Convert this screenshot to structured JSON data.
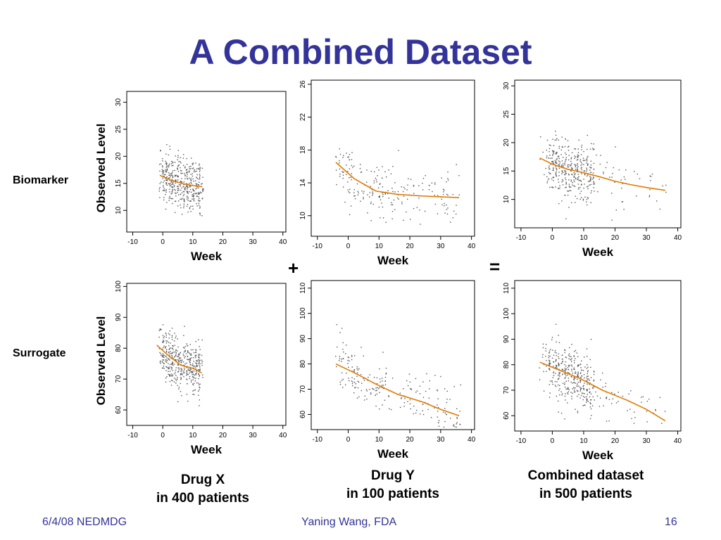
{
  "slide": {
    "title": "A Combined Dataset",
    "row_labels": [
      "Biomarker",
      "Surrogate"
    ],
    "y_axis_label": "Observed Level",
    "plus": "+",
    "equals": "=",
    "captions": [
      [
        "Drug X",
        "in 400 patients"
      ],
      [
        "Drug Y",
        "in 100 patients"
      ],
      [
        "Combined dataset",
        "in 500 patients"
      ]
    ],
    "footer": {
      "left": "6/4/08 NEDMDG",
      "center": "Yaning Wang, FDA",
      "right": "16"
    }
  },
  "chart_data": [
    {
      "type": "scatter",
      "panel": "Biomarker - Drug X",
      "xlabel": "Week",
      "ylabel": "Observed Level",
      "xlim": [
        -12,
        41
      ],
      "ylim": [
        6,
        32
      ],
      "xticks": [
        -10,
        0,
        10,
        20,
        30,
        40
      ],
      "yticks": [
        10,
        15,
        20,
        25,
        30
      ],
      "x_range_observed": [
        -1,
        13
      ],
      "fit": {
        "x": [
          -1,
          3,
          7,
          11,
          13
        ],
        "y": [
          16.5,
          15.5,
          14.9,
          14.5,
          14.4
        ]
      },
      "colors": {
        "fit": "#e07b00",
        "points": "#555555"
      }
    },
    {
      "type": "scatter",
      "panel": "Biomarker - Drug Y",
      "xlabel": "Week",
      "ylabel": "",
      "xlim": [
        -12,
        41
      ],
      "ylim": [
        7.5,
        26.5
      ],
      "xticks": [
        -10,
        0,
        10,
        20,
        30,
        40
      ],
      "yticks": [
        10,
        14,
        18,
        22,
        26
      ],
      "x_range_observed": [
        -4,
        36
      ],
      "fit": {
        "x": [
          -4,
          2,
          9,
          16,
          24,
          30,
          36
        ],
        "y": [
          16.5,
          14.5,
          13.0,
          12.6,
          12.4,
          12.3,
          12.2
        ]
      },
      "colors": {
        "fit": "#e07b00",
        "points": "#555555"
      }
    },
    {
      "type": "scatter",
      "panel": "Biomarker - Combined",
      "xlabel": "Week",
      "ylabel": "",
      "xlim": [
        -12,
        41
      ],
      "ylim": [
        5,
        31
      ],
      "xticks": [
        -10,
        0,
        10,
        20,
        30,
        40
      ],
      "yticks": [
        10,
        15,
        20,
        25,
        30
      ],
      "x_range_observed": [
        -4,
        36
      ],
      "fit": {
        "x": [
          -4,
          0,
          5,
          10,
          15,
          20,
          25,
          30,
          36
        ],
        "y": [
          17.3,
          16.2,
          15.3,
          14.7,
          14.0,
          13.2,
          12.6,
          12.1,
          11.6
        ]
      },
      "colors": {
        "fit": "#e07b00",
        "points": "#555555"
      }
    },
    {
      "type": "scatter",
      "panel": "Surrogate - Drug X",
      "xlabel": "Week",
      "ylabel": "Observed Level",
      "xlim": [
        -12,
        41
      ],
      "ylim": [
        55,
        101
      ],
      "xticks": [
        -10,
        0,
        10,
        20,
        30,
        40
      ],
      "yticks": [
        60,
        70,
        80,
        90,
        100
      ],
      "x_range_observed": [
        -1,
        13
      ],
      "fit": {
        "x": [
          -2,
          2,
          6,
          10,
          13
        ],
        "y": [
          81,
          77.5,
          74.5,
          73.5,
          72
        ]
      },
      "colors": {
        "fit": "#e07b00",
        "points": "#555555"
      }
    },
    {
      "type": "scatter",
      "panel": "Surrogate - Drug Y",
      "xlabel": "Week",
      "ylabel": "",
      "xlim": [
        -12,
        41
      ],
      "ylim": [
        54,
        113
      ],
      "xticks": [
        -10,
        0,
        10,
        20,
        30,
        40
      ],
      "yticks": [
        60,
        70,
        80,
        90,
        100,
        110
      ],
      "x_range_observed": [
        -4,
        36
      ],
      "fit": {
        "x": [
          -4,
          2,
          9,
          16,
          24,
          30,
          36
        ],
        "y": [
          80,
          76.5,
          72,
          68,
          65,
          62,
          59.5
        ]
      },
      "colors": {
        "fit": "#e07b00",
        "points": "#555555"
      }
    },
    {
      "type": "scatter",
      "panel": "Surrogate - Combined",
      "xlabel": "Week",
      "ylabel": "",
      "xlim": [
        -12,
        41
      ],
      "ylim": [
        54,
        113
      ],
      "xticks": [
        -10,
        0,
        10,
        20,
        30,
        40
      ],
      "yticks": [
        60,
        70,
        80,
        90,
        100,
        110
      ],
      "x_range_observed": [
        -4,
        36
      ],
      "fit": {
        "x": [
          -4,
          2,
          9,
          16,
          24,
          30,
          36
        ],
        "y": [
          81,
          78,
          74.5,
          70,
          66,
          62.5,
          58
        ]
      },
      "colors": {
        "fit": "#e07b00",
        "points": "#555555"
      }
    }
  ]
}
